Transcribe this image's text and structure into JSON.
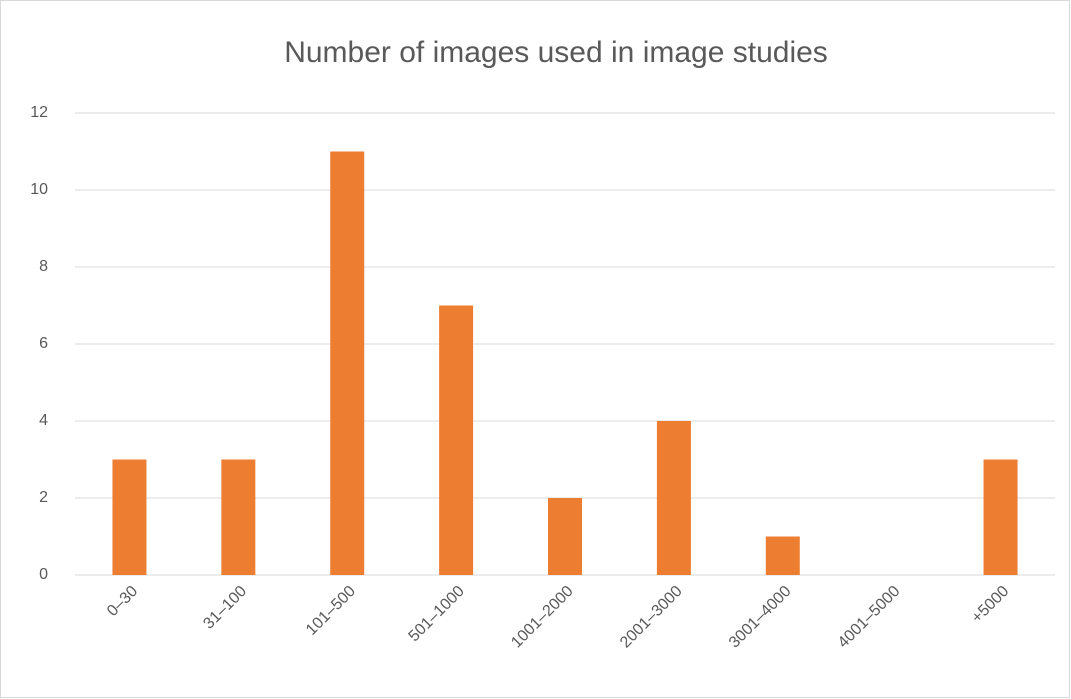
{
  "chart_data": {
    "type": "bar",
    "title": "Number of images used in image studies",
    "categories": [
      "0–30",
      "31–100",
      "101–500",
      "501–1000",
      "1001–2000",
      "2001–3000",
      "3001–4000",
      "4001–5000",
      "+5000"
    ],
    "values": [
      3,
      3,
      11,
      7,
      2,
      4,
      1,
      0,
      3
    ],
    "color": "#ed7d31",
    "ylim": [
      0,
      12
    ],
    "yticks": [
      0,
      2,
      4,
      6,
      8,
      10,
      12
    ],
    "grid": true
  }
}
